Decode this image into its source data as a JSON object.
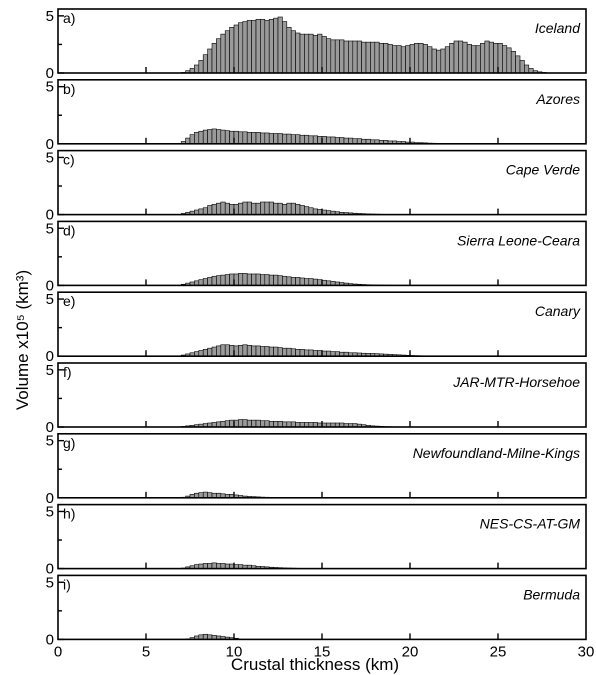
{
  "figure": {
    "xlabel": "Crustal thickness (km)",
    "ylabel": "Volume x10⁵ (km³)"
  },
  "chart_data": {
    "type": "bar",
    "xlim": [
      0,
      30
    ],
    "ylim": [
      0,
      5.6
    ],
    "bin_width": 0.25,
    "x_ticks": [
      0,
      5,
      10,
      15,
      20,
      25,
      30
    ],
    "y_ticks": [
      0,
      5
    ],
    "xlabel": "Crustal thickness (km)",
    "ylabel": "Volume x10⁵ (km³)",
    "grid": false,
    "panels": [
      {
        "letter": "a)",
        "name": "Iceland",
        "x_start": 7.0,
        "values": [
          0.05,
          0.2,
          0.4,
          0.7,
          1.1,
          1.6,
          2.1,
          2.6,
          3.0,
          3.4,
          3.7,
          4.0,
          4.2,
          4.4,
          4.5,
          4.6,
          4.6,
          4.7,
          4.7,
          4.6,
          4.7,
          4.8,
          4.9,
          4.5,
          4.0,
          3.7,
          3.5,
          3.4,
          3.4,
          3.4,
          3.3,
          3.4,
          3.2,
          3.0,
          2.9,
          2.9,
          2.9,
          2.8,
          2.8,
          2.8,
          2.8,
          2.7,
          2.7,
          2.7,
          2.7,
          2.6,
          2.6,
          2.5,
          2.4,
          2.4,
          2.3,
          2.4,
          2.5,
          2.6,
          2.6,
          2.5,
          2.3,
          2.1,
          2.0,
          2.1,
          2.3,
          2.6,
          2.8,
          2.8,
          2.7,
          2.5,
          2.4,
          2.4,
          2.6,
          2.8,
          2.7,
          2.6,
          2.6,
          2.4,
          2.2,
          1.9,
          1.5,
          1.1,
          0.7,
          0.4,
          0.2,
          0.1,
          0.05
        ]
      },
      {
        "letter": "b)",
        "name": "Azores",
        "x_start": 7.0,
        "values": [
          0.2,
          0.5,
          0.8,
          1.0,
          1.1,
          1.2,
          1.25,
          1.3,
          1.25,
          1.2,
          1.15,
          1.1,
          1.1,
          1.05,
          1.05,
          1.0,
          1.0,
          1.0,
          0.95,
          0.95,
          0.9,
          0.9,
          0.9,
          0.85,
          0.85,
          0.8,
          0.8,
          0.75,
          0.75,
          0.7,
          0.7,
          0.65,
          0.65,
          0.6,
          0.6,
          0.55,
          0.55,
          0.5,
          0.5,
          0.45,
          0.45,
          0.4,
          0.4,
          0.35,
          0.35,
          0.3,
          0.3,
          0.25,
          0.25,
          0.2,
          0.2,
          0.15,
          0.15,
          0.1,
          0.1,
          0.08,
          0.06,
          0.05,
          0.04,
          0.03,
          0.02,
          0.02
        ]
      },
      {
        "letter": "c)",
        "name": "Cape Verde",
        "x_start": 7.0,
        "values": [
          0.1,
          0.2,
          0.3,
          0.4,
          0.5,
          0.6,
          0.8,
          0.9,
          1.0,
          1.1,
          1.0,
          0.9,
          0.9,
          1.0,
          1.1,
          1.1,
          1.0,
          1.0,
          1.1,
          1.1,
          1.1,
          1.0,
          1.0,
          0.9,
          1.0,
          1.0,
          0.9,
          0.8,
          0.7,
          0.6,
          0.5,
          0.45,
          0.4,
          0.35,
          0.3,
          0.25,
          0.2,
          0.18,
          0.15,
          0.12,
          0.1,
          0.08,
          0.06,
          0.05,
          0.04,
          0.03,
          0.02,
          0.02
        ]
      },
      {
        "letter": "d)",
        "name": "Sierra Leone-Ceara",
        "x_start": 7.0,
        "values": [
          0.1,
          0.2,
          0.3,
          0.4,
          0.5,
          0.6,
          0.7,
          0.8,
          0.85,
          0.9,
          0.95,
          1.0,
          1.0,
          1.05,
          1.05,
          1.0,
          1.0,
          1.0,
          0.95,
          0.95,
          0.9,
          0.9,
          0.85,
          0.8,
          0.75,
          0.7,
          0.7,
          0.65,
          0.6,
          0.6,
          0.55,
          0.5,
          0.45,
          0.4,
          0.35,
          0.3,
          0.25,
          0.2,
          0.15,
          0.12,
          0.1,
          0.08,
          0.06,
          0.05,
          0.04,
          0.03,
          0.02,
          0.02
        ]
      },
      {
        "letter": "e)",
        "name": "Canary",
        "x_start": 7.0,
        "values": [
          0.1,
          0.2,
          0.3,
          0.4,
          0.5,
          0.6,
          0.7,
          0.8,
          0.9,
          1.0,
          1.0,
          0.95,
          0.9,
          0.95,
          1.0,
          0.95,
          0.9,
          0.9,
          0.85,
          0.85,
          0.8,
          0.8,
          0.75,
          0.7,
          0.7,
          0.65,
          0.6,
          0.6,
          0.55,
          0.55,
          0.5,
          0.5,
          0.45,
          0.45,
          0.4,
          0.4,
          0.35,
          0.35,
          0.3,
          0.3,
          0.28,
          0.26,
          0.25,
          0.24,
          0.22,
          0.2,
          0.18,
          0.16,
          0.14,
          0.12,
          0.1,
          0.08,
          0.06,
          0.05,
          0.04,
          0.03,
          0.02,
          0.02
        ]
      },
      {
        "letter": "f)",
        "name": "JAR-MTR-Horsehoe",
        "x_start": 7.0,
        "values": [
          0.05,
          0.1,
          0.15,
          0.2,
          0.25,
          0.3,
          0.35,
          0.4,
          0.45,
          0.5,
          0.55,
          0.6,
          0.6,
          0.65,
          0.65,
          0.6,
          0.6,
          0.6,
          0.55,
          0.55,
          0.5,
          0.5,
          0.5,
          0.45,
          0.45,
          0.45,
          0.4,
          0.4,
          0.4,
          0.4,
          0.4,
          0.35,
          0.35,
          0.35,
          0.35,
          0.35,
          0.35,
          0.3,
          0.3,
          0.3,
          0.25,
          0.2,
          0.15,
          0.1,
          0.08,
          0.06,
          0.04,
          0.03,
          0.02,
          0.02
        ]
      },
      {
        "letter": "g)",
        "name": "Newfoundland-Milne-Kings",
        "x_start": 7.0,
        "values": [
          0.05,
          0.15,
          0.3,
          0.4,
          0.45,
          0.5,
          0.45,
          0.4,
          0.4,
          0.35,
          0.3,
          0.3,
          0.25,
          0.2,
          0.15,
          0.12,
          0.1,
          0.08,
          0.06,
          0.05,
          0.04,
          0.03,
          0.02,
          0.02
        ]
      },
      {
        "letter": "h)",
        "name": "NES-CS-AT-GM",
        "x_start": 7.0,
        "values": [
          0.05,
          0.15,
          0.25,
          0.35,
          0.4,
          0.45,
          0.45,
          0.5,
          0.45,
          0.45,
          0.4,
          0.4,
          0.35,
          0.35,
          0.3,
          0.3,
          0.25,
          0.2,
          0.18,
          0.15,
          0.12,
          0.1,
          0.08,
          0.06,
          0.05,
          0.04,
          0.03,
          0.02,
          0.02,
          0.02
        ]
      },
      {
        "letter": "i)",
        "name": "Bermuda",
        "x_start": 7.25,
        "values": [
          0.05,
          0.15,
          0.3,
          0.4,
          0.45,
          0.4,
          0.35,
          0.3,
          0.25,
          0.2,
          0.15,
          0.1
        ]
      }
    ]
  }
}
